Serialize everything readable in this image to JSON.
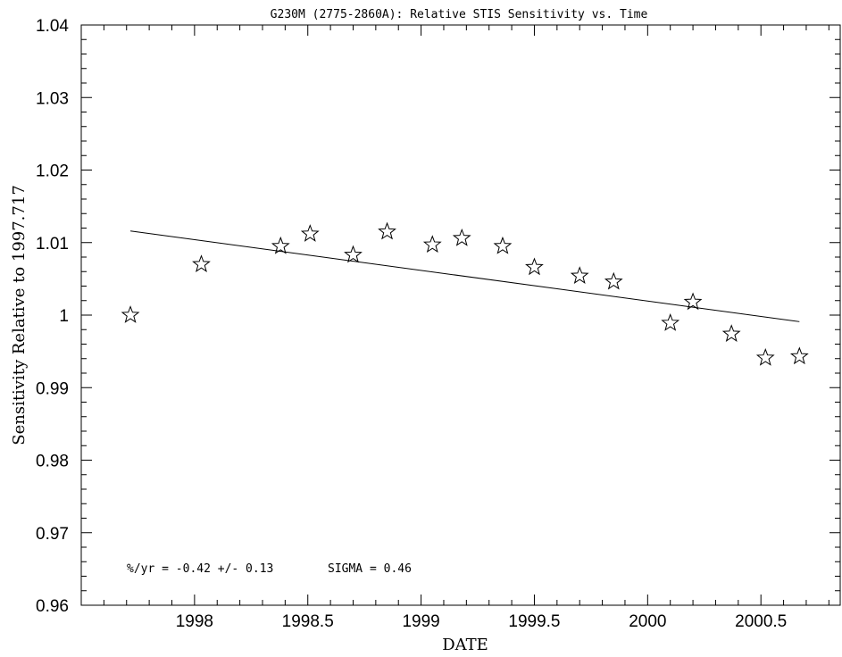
{
  "chart_data": {
    "type": "scatter",
    "title": "G230M (2775-2860A): Relative STIS Sensitivity vs. Time",
    "xlabel": "DATE",
    "ylabel": "Sensitivity Relative to 1997.717",
    "xlim": [
      1997.5,
      2000.85
    ],
    "ylim": [
      0.96,
      1.04
    ],
    "x_ticks": [
      1998,
      1998.5,
      1999,
      1999.5,
      2000,
      2000.5
    ],
    "x_tick_labels": [
      "1998",
      "1998.5",
      "1999",
      "1999.5",
      "2000",
      "2000.5"
    ],
    "y_ticks": [
      0.96,
      0.97,
      0.98,
      0.99,
      1.0,
      1.01,
      1.02,
      1.03,
      1.04
    ],
    "y_tick_labels": [
      "0.96",
      "0.97",
      "0.98",
      "0.99",
      "1",
      "1.01",
      "1.02",
      "1.03",
      "1.04"
    ],
    "grid": false,
    "marker": "star",
    "points": [
      {
        "x": 1997.717,
        "y": 1.0
      },
      {
        "x": 1998.03,
        "y": 1.007
      },
      {
        "x": 1998.38,
        "y": 1.0095
      },
      {
        "x": 1998.51,
        "y": 1.0112
      },
      {
        "x": 1998.7,
        "y": 1.0083
      },
      {
        "x": 1998.85,
        "y": 1.0115
      },
      {
        "x": 1999.05,
        "y": 1.0097
      },
      {
        "x": 1999.18,
        "y": 1.0106
      },
      {
        "x": 1999.36,
        "y": 1.0095
      },
      {
        "x": 1999.5,
        "y": 1.0066
      },
      {
        "x": 1999.7,
        "y": 1.0054
      },
      {
        "x": 1999.85,
        "y": 1.0046
      },
      {
        "x": 2000.1,
        "y": 0.9989
      },
      {
        "x": 2000.2,
        "y": 1.0018
      },
      {
        "x": 2000.37,
        "y": 0.9974
      },
      {
        "x": 2000.52,
        "y": 0.9941
      },
      {
        "x": 2000.67,
        "y": 0.9943
      }
    ],
    "fit_line": {
      "x": [
        1997.717,
        2000.67
      ],
      "y": [
        1.0116,
        0.9991
      ]
    },
    "annotations": [
      "%/yr = -0.42 +/- 0.13",
      "SIGMA = 0.46"
    ]
  }
}
